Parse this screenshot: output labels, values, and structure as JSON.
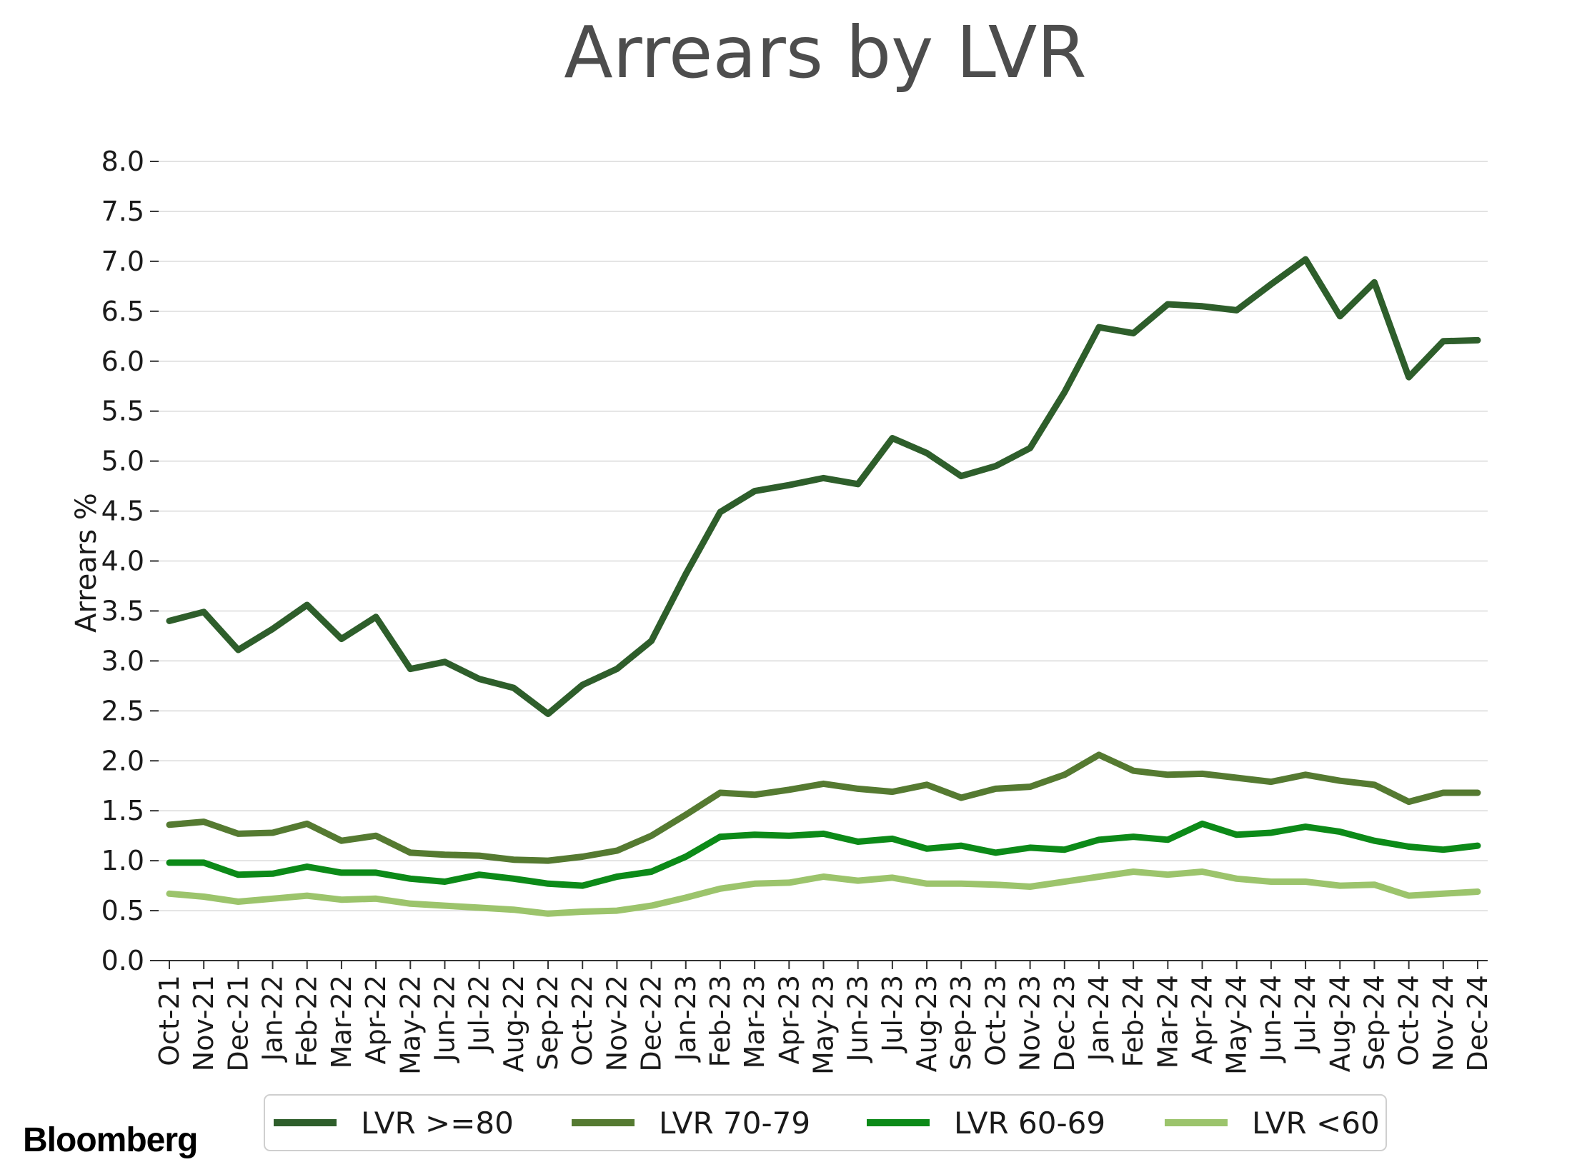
{
  "chart_data": {
    "type": "line",
    "title": "Arrears by LVR",
    "xlabel": "",
    "ylabel": "Arrears %",
    "ylim": [
      0,
      8
    ],
    "yticks": [
      "0.0",
      "0.5",
      "1.0",
      "1.5",
      "2.0",
      "2.5",
      "3.0",
      "3.5",
      "4.0",
      "4.5",
      "5.0",
      "5.5",
      "6.0",
      "6.5",
      "7.0",
      "7.5",
      "8.0"
    ],
    "grid": true,
    "legend_position": "bottom",
    "categories": [
      "Oct-21",
      "Nov-21",
      "Dec-21",
      "Jan-22",
      "Feb-22",
      "Mar-22",
      "Apr-22",
      "May-22",
      "Jun-22",
      "Jul-22",
      "Aug-22",
      "Sep-22",
      "Oct-22",
      "Nov-22",
      "Dec-22",
      "Jan-23",
      "Feb-23",
      "Mar-23",
      "Apr-23",
      "May-23",
      "Jun-23",
      "Jul-23",
      "Aug-23",
      "Sep-23",
      "Oct-23",
      "Nov-23",
      "Dec-23",
      "Jan-24",
      "Feb-24",
      "Mar-24",
      "Apr-24",
      "May-24",
      "Jun-24",
      "Jul-24",
      "Aug-24",
      "Sep-24",
      "Oct-24",
      "Nov-24",
      "Dec-24"
    ],
    "series": [
      {
        "name": "LVR >=80",
        "color": "#2e5e2b",
        "values": [
          3.4,
          3.49,
          3.11,
          3.32,
          3.56,
          3.22,
          3.44,
          2.92,
          2.99,
          2.82,
          2.73,
          2.47,
          2.76,
          2.92,
          3.2,
          3.87,
          4.49,
          4.7,
          4.76,
          4.83,
          4.77,
          5.23,
          5.08,
          4.85,
          4.95,
          5.13,
          5.69,
          6.34,
          6.28,
          6.57,
          6.55,
          6.51,
          6.77,
          7.02,
          6.45,
          6.79,
          5.84,
          6.2,
          6.21
        ]
      },
      {
        "name": "LVR 70-79",
        "color": "#557a31",
        "values": [
          1.36,
          1.39,
          1.27,
          1.28,
          1.37,
          1.2,
          1.25,
          1.08,
          1.06,
          1.05,
          1.01,
          1.0,
          1.04,
          1.1,
          1.25,
          1.46,
          1.68,
          1.66,
          1.71,
          1.77,
          1.72,
          1.69,
          1.76,
          1.63,
          1.72,
          1.74,
          1.86,
          2.06,
          1.9,
          1.86,
          1.87,
          1.83,
          1.79,
          1.86,
          1.8,
          1.76,
          1.59,
          1.68,
          1.68
        ]
      },
      {
        "name": "LVR 60-69",
        "color": "#0c8a18",
        "values": [
          0.98,
          0.98,
          0.86,
          0.87,
          0.94,
          0.88,
          0.88,
          0.82,
          0.79,
          0.86,
          0.82,
          0.77,
          0.75,
          0.84,
          0.89,
          1.04,
          1.24,
          1.26,
          1.25,
          1.27,
          1.19,
          1.22,
          1.12,
          1.15,
          1.08,
          1.13,
          1.11,
          1.21,
          1.24,
          1.21,
          1.37,
          1.26,
          1.28,
          1.34,
          1.29,
          1.2,
          1.14,
          1.11,
          1.15
        ]
      },
      {
        "name": "LVR <60",
        "color": "#9cc46c",
        "values": [
          0.67,
          0.64,
          0.59,
          0.62,
          0.65,
          0.61,
          0.62,
          0.57,
          0.55,
          0.53,
          0.51,
          0.47,
          0.49,
          0.5,
          0.55,
          0.63,
          0.72,
          0.77,
          0.78,
          0.84,
          0.8,
          0.83,
          0.77,
          0.77,
          0.76,
          0.74,
          0.79,
          0.84,
          0.89,
          0.86,
          0.89,
          0.82,
          0.79,
          0.79,
          0.75,
          0.76,
          0.65,
          0.67,
          0.69
        ]
      }
    ],
    "source_logo": "Bloomberg"
  }
}
